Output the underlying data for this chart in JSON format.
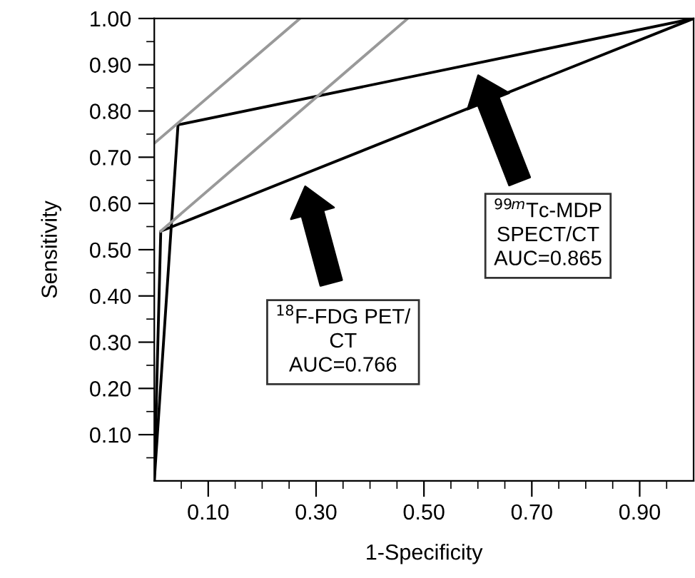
{
  "chart_data": {
    "type": "line",
    "xlabel": "1-Specificity",
    "ylabel": "Sensitivity",
    "series": [
      {
        "color": "#000000",
        "x": [
          0,
          0.044,
          1
        ],
        "values": [
          0,
          0.77,
          1
        ]
      },
      {
        "color": "#000000",
        "x": [
          0,
          0.012,
          1
        ],
        "values": [
          0,
          0.54,
          1
        ]
      },
      {
        "color": "#999999",
        "x": [
          0,
          0.27
        ],
        "values": [
          0.73,
          1
        ]
      },
      {
        "color": "#999999",
        "x": [
          0.012,
          0.47
        ],
        "values": [
          0.54,
          1
        ]
      }
    ],
    "annotations": [
      "$^{18}$F-FDG PET/\nCT\nAUC=0.766",
      "$^{99m}$Tc-MDP\nSPECT/CT\nAUC=0.865"
    ],
    "xlim": [
      0,
      1
    ],
    "ylim": [
      0,
      1
    ],
    "xticks": [
      {
        "value": 0.05,
        "label": null
      },
      {
        "value": 0.1,
        "label": "0.10"
      },
      {
        "value": 0.15,
        "label": null
      },
      {
        "value": 0.2,
        "label": null
      },
      {
        "value": 0.25,
        "label": null
      },
      {
        "value": 0.3,
        "label": "0.30"
      },
      {
        "value": 0.35,
        "label": null
      },
      {
        "value": 0.4,
        "label": null
      },
      {
        "value": 0.45,
        "label": null
      },
      {
        "value": 0.5,
        "label": "0.50"
      },
      {
        "value": 0.55,
        "label": null
      },
      {
        "value": 0.6,
        "label": null
      },
      {
        "value": 0.65,
        "label": null
      },
      {
        "value": 0.7,
        "label": "0.70"
      },
      {
        "value": 0.75,
        "label": null
      },
      {
        "value": 0.8,
        "label": null
      },
      {
        "value": 0.85,
        "label": null
      },
      {
        "value": 0.9,
        "label": "0.90"
      },
      {
        "value": 0.95,
        "label": null
      }
    ],
    "yticks": [
      {
        "value": 0.05,
        "label": null
      },
      {
        "value": 0.1,
        "label": "0.10"
      },
      {
        "value": 0.15,
        "label": null
      },
      {
        "value": 0.2,
        "label": "0.20"
      },
      {
        "value": 0.25,
        "label": null
      },
      {
        "value": 0.3,
        "label": "0.30"
      },
      {
        "value": 0.35,
        "label": null
      },
      {
        "value": 0.4,
        "label": "0.40"
      },
      {
        "value": 0.45,
        "label": null
      },
      {
        "value": 0.5,
        "label": "0.50"
      },
      {
        "value": 0.55,
        "label": null
      },
      {
        "value": 0.6,
        "label": "0.60"
      },
      {
        "value": 0.65,
        "label": null
      },
      {
        "value": 0.7,
        "label": "0.70"
      },
      {
        "value": 0.75,
        "label": null
      },
      {
        "value": 0.8,
        "label": "0.80"
      },
      {
        "value": 0.85,
        "label": null
      },
      {
        "value": 0.9,
        "label": "0.90"
      },
      {
        "value": 0.95,
        "label": null
      },
      {
        "value": 1.0,
        "label": "1.00"
      }
    ],
    "grid": false,
    "legend": false,
    "marker": "none",
    "line_style": "solid"
  }
}
